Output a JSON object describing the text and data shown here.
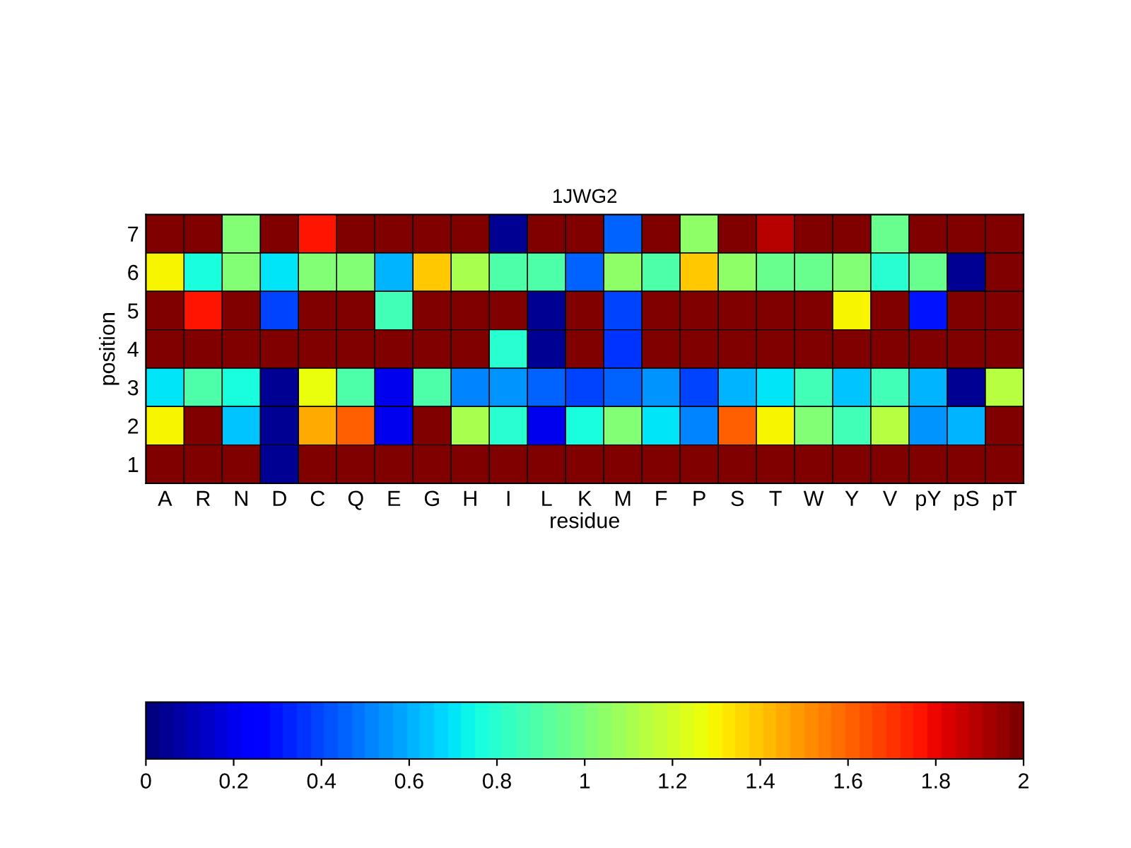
{
  "chart_data": {
    "type": "heatmap",
    "title": "1JWG2",
    "xlabel": "residue",
    "ylabel": "position",
    "categories": [
      "A",
      "R",
      "N",
      "D",
      "C",
      "Q",
      "E",
      "G",
      "H",
      "I",
      "L",
      "K",
      "M",
      "F",
      "P",
      "S",
      "T",
      "W",
      "Y",
      "V",
      "pY",
      "pS",
      "pT"
    ],
    "y_categories": [
      "7",
      "6",
      "5",
      "4",
      "3",
      "2",
      "1"
    ],
    "cells": [
      [
        2,
        2,
        1.0,
        2,
        1.75,
        2,
        2,
        2,
        2,
        0.05,
        2,
        2,
        0.45,
        2,
        1.05,
        2,
        1.9,
        2,
        2,
        0.95,
        2,
        2,
        2
      ],
      [
        1.3,
        0.75,
        1.0,
        0.7,
        1.0,
        1.0,
        0.6,
        1.4,
        1.1,
        0.9,
        0.9,
        0.45,
        1.05,
        0.9,
        1.4,
        1.05,
        0.95,
        0.95,
        1.0,
        0.8,
        0.95,
        0.05,
        2
      ],
      [
        2,
        1.75,
        2,
        0.4,
        2,
        2,
        0.85,
        2,
        2,
        2,
        0.05,
        2,
        0.4,
        2,
        2,
        2,
        2,
        2,
        1.3,
        2,
        0.3,
        2,
        2
      ],
      [
        2,
        2,
        2,
        2,
        2,
        2,
        2,
        2,
        2,
        0.8,
        0.05,
        2,
        0.35,
        2,
        2,
        2,
        2,
        2,
        2,
        2,
        2,
        2,
        2
      ],
      [
        0.7,
        0.9,
        0.75,
        0.05,
        1.25,
        0.9,
        0.2,
        0.9,
        0.5,
        0.55,
        0.45,
        0.4,
        0.45,
        0.55,
        0.4,
        0.6,
        0.7,
        0.85,
        0.65,
        0.85,
        0.6,
        0.05,
        1.15
      ],
      [
        1.3,
        2,
        0.65,
        0.05,
        1.45,
        1.6,
        0.2,
        2,
        1.1,
        0.8,
        0.2,
        0.75,
        1.0,
        0.7,
        0.5,
        1.6,
        1.3,
        1.0,
        0.85,
        1.15,
        0.55,
        0.6,
        2
      ],
      [
        2,
        2,
        2,
        0.05,
        2,
        2,
        2,
        2,
        2,
        2,
        2,
        2,
        2,
        2,
        2,
        2,
        2,
        2,
        2,
        2,
        2,
        2,
        2
      ]
    ],
    "clim": [
      0,
      2
    ],
    "cticks": [
      0,
      0.2,
      0.4,
      0.6,
      0.8,
      1,
      1.2,
      1.4,
      1.6,
      1.8,
      2
    ]
  }
}
